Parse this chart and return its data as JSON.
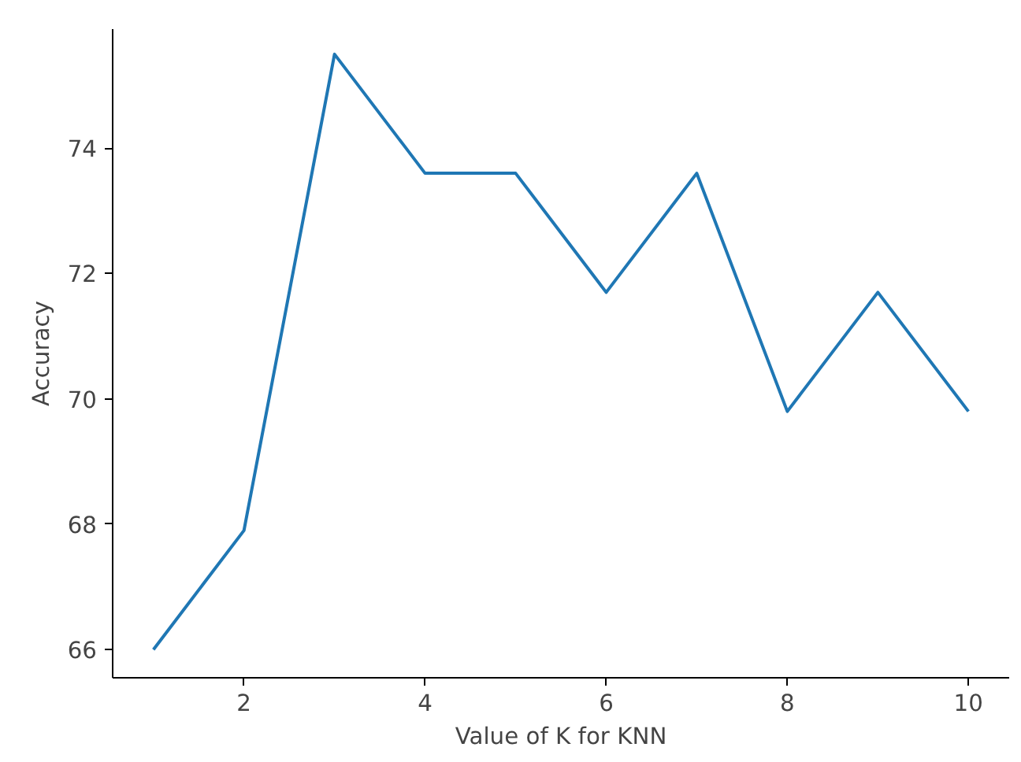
{
  "chart_data": {
    "type": "line",
    "xlabel": "Value of K for KNN",
    "ylabel": "Accuracy",
    "x": [
      1,
      2,
      3,
      4,
      5,
      6,
      7,
      8,
      9,
      10
    ],
    "series": [
      {
        "color": "#1f77b4",
        "values": [
          66.0,
          67.9,
          75.5,
          73.6,
          73.6,
          71.7,
          73.6,
          69.8,
          71.7,
          69.8
        ]
      }
    ],
    "xlim": [
      0.55,
      10.45
    ],
    "ylim": [
      65.55,
      75.9
    ],
    "xticks": [
      2,
      4,
      6,
      8,
      10
    ],
    "yticks": [
      66,
      68,
      70,
      72,
      74
    ],
    "grid": false,
    "marker": "none",
    "line_style": "solid"
  }
}
